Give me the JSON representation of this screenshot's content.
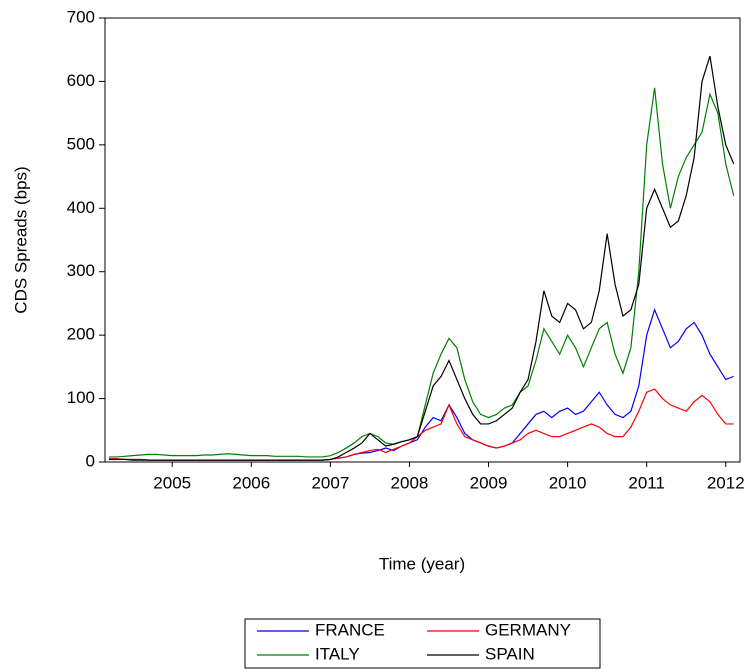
{
  "chart_data": {
    "type": "line",
    "x_label": "Time (year)",
    "y_label": "CDS Spreads (bps)",
    "x": [
      2004.7,
      2004.8,
      2004.9,
      2005.0,
      2005.1,
      2005.2,
      2005.3,
      2005.4,
      2005.5,
      2005.6,
      2005.7,
      2005.8,
      2005.9,
      2006.0,
      2006.1,
      2006.2,
      2006.3,
      2006.4,
      2006.5,
      2006.6,
      2006.7,
      2006.8,
      2006.9,
      2007.0,
      2007.1,
      2007.2,
      2007.3,
      2007.4,
      2007.5,
      2007.6,
      2007.7,
      2007.8,
      2007.9,
      2008.0,
      2008.1,
      2008.2,
      2008.3,
      2008.4,
      2008.5,
      2008.6,
      2008.7,
      2008.8,
      2008.9,
      2009.0,
      2009.1,
      2009.2,
      2009.3,
      2009.4,
      2009.5,
      2009.6,
      2009.7,
      2009.8,
      2009.9,
      2010.0,
      2010.1,
      2010.2,
      2010.3,
      2010.4,
      2010.5,
      2010.6,
      2010.7,
      2010.8,
      2010.9,
      2011.0,
      2011.1,
      2011.2,
      2011.3,
      2011.4,
      2011.5,
      2011.6,
      2011.7,
      2011.8,
      2011.9,
      2012.0,
      2012.1,
      2012.2,
      2012.3,
      2012.4,
      2012.5,
      2012.6
    ],
    "series": [
      {
        "name": "FRANCE",
        "color": "#0000ff",
        "values": [
          5,
          5,
          4,
          4,
          4,
          3,
          3,
          3,
          3,
          3,
          3,
          3,
          3,
          3,
          3,
          3,
          3,
          3,
          3,
          3,
          3,
          3,
          3,
          3,
          3,
          3,
          3,
          3,
          4,
          6,
          8,
          12,
          14,
          15,
          18,
          22,
          18,
          25,
          30,
          35,
          55,
          70,
          65,
          90,
          70,
          45,
          35,
          30,
          25,
          22,
          25,
          30,
          45,
          60,
          75,
          80,
          70,
          80,
          85,
          75,
          80,
          95,
          110,
          90,
          75,
          70,
          80,
          120,
          200,
          240,
          210,
          180,
          190,
          210,
          220,
          200,
          170,
          150,
          130,
          135
        ]
      },
      {
        "name": "GERMANY",
        "color": "#ff0000",
        "values": [
          5,
          5,
          4,
          4,
          4,
          3,
          3,
          3,
          3,
          3,
          3,
          3,
          3,
          3,
          3,
          3,
          3,
          3,
          3,
          3,
          3,
          3,
          3,
          3,
          3,
          3,
          3,
          3,
          4,
          6,
          8,
          12,
          15,
          18,
          20,
          15,
          20,
          25,
          30,
          40,
          50,
          55,
          60,
          90,
          60,
          40,
          35,
          30,
          25,
          22,
          25,
          30,
          35,
          45,
          50,
          45,
          40,
          40,
          45,
          50,
          55,
          60,
          55,
          45,
          40,
          40,
          55,
          80,
          110,
          115,
          100,
          90,
          85,
          80,
          95,
          105,
          95,
          75,
          60,
          60
        ]
      },
      {
        "name": "ITALY",
        "color": "#008000",
        "values": [
          8,
          8,
          9,
          10,
          11,
          12,
          12,
          11,
          10,
          10,
          10,
          10,
          11,
          11,
          12,
          13,
          12,
          11,
          10,
          10,
          10,
          9,
          9,
          9,
          9,
          8,
          8,
          8,
          10,
          15,
          22,
          30,
          40,
          45,
          40,
          30,
          28,
          32,
          35,
          40,
          90,
          140,
          170,
          195,
          180,
          130,
          95,
          75,
          70,
          75,
          85,
          90,
          110,
          120,
          160,
          210,
          190,
          170,
          200,
          180,
          150,
          180,
          210,
          220,
          170,
          140,
          180,
          300,
          500,
          590,
          470,
          400,
          450,
          480,
          500,
          520,
          580,
          550,
          470,
          420
        ]
      },
      {
        "name": "SPAIN",
        "color": "#000000",
        "values": [
          4,
          4,
          4,
          3,
          3,
          3,
          3,
          3,
          3,
          3,
          3,
          3,
          3,
          3,
          3,
          3,
          3,
          3,
          3,
          3,
          3,
          3,
          3,
          3,
          3,
          3,
          3,
          3,
          4,
          8,
          15,
          22,
          30,
          45,
          35,
          25,
          28,
          32,
          35,
          40,
          80,
          120,
          135,
          160,
          130,
          100,
          75,
          60,
          60,
          65,
          75,
          85,
          110,
          130,
          190,
          270,
          230,
          220,
          250,
          240,
          210,
          220,
          270,
          360,
          280,
          230,
          240,
          280,
          400,
          430,
          400,
          370,
          380,
          420,
          480,
          600,
          640,
          560,
          500,
          470
        ]
      }
    ],
    "xlim": [
      2004.65,
      2012.68
    ],
    "xticks": [
      {
        "value": 2005.5,
        "label": "2005"
      },
      {
        "value": 2006.5,
        "label": "2006"
      },
      {
        "value": 2007.5,
        "label": "2007"
      },
      {
        "value": 2008.5,
        "label": "2008"
      },
      {
        "value": 2009.5,
        "label": "2009"
      },
      {
        "value": 2010.5,
        "label": "2010"
      },
      {
        "value": 2011.5,
        "label": "2011"
      },
      {
        "value": 2012.5,
        "label": "2012"
      }
    ],
    "ylim": [
      0,
      700
    ],
    "yticks": [
      0,
      100,
      200,
      300,
      400,
      500,
      600,
      700
    ]
  }
}
